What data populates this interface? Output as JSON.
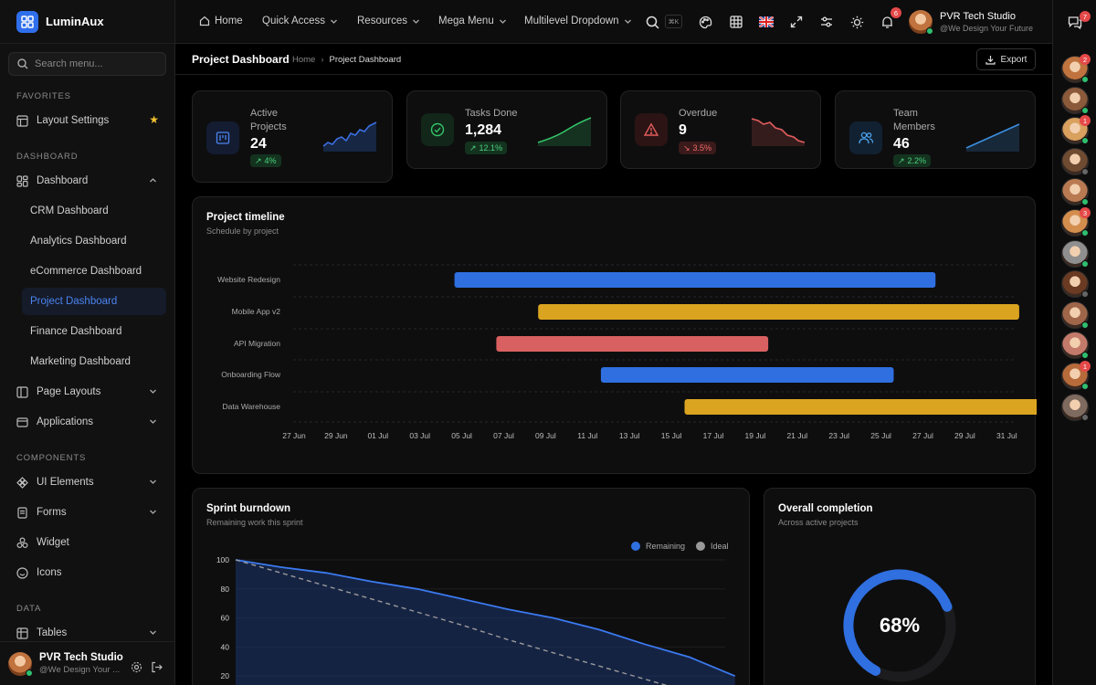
{
  "app": {
    "name": "LuminAux"
  },
  "sidebar": {
    "search_placeholder": "Search menu...",
    "sections": {
      "favorites": "FAVORITES",
      "dashboard": "DASHBOARD",
      "components": "COMPONENTS",
      "data": "DATA"
    },
    "layout_settings": "Layout Settings",
    "dashboard": "Dashboard",
    "sub": [
      "CRM Dashboard",
      "Analytics Dashboard",
      "eCommerce Dashboard",
      "Project Dashboard",
      "Finance Dashboard",
      "Marketing Dashboard"
    ],
    "page_layouts": "Page Layouts",
    "applications": "Applications",
    "ui_elements": "UI Elements",
    "forms": "Forms",
    "widget": "Widget",
    "icons": "Icons",
    "tables": "Tables",
    "footer": {
      "name": "PVR Tech Studio",
      "tagline": "@We Design Your ..."
    }
  },
  "topbar": {
    "home": "Home",
    "quick_access": "Quick Access",
    "resources": "Resources",
    "mega_menu": "Mega Menu",
    "multilevel": "Multilevel Dropdown",
    "kbd": "⌘K",
    "notifications_count": "6",
    "user_name": "PVR Tech Studio",
    "user_tagline": "@We Design Your Future",
    "chat_count": "7"
  },
  "page": {
    "title": "Project Dashboard",
    "crumb_home": "Home",
    "crumb_current": "Project Dashboard",
    "export": "Export"
  },
  "stats": [
    {
      "label": "Active Projects",
      "value": "24",
      "change": "4%",
      "dir": "up",
      "color": "#3b6fe0"
    },
    {
      "label": "Tasks Done",
      "value": "1,284",
      "change": "12.1%",
      "dir": "up",
      "color": "#34c468"
    },
    {
      "label": "Overdue",
      "value": "9",
      "change": "3.5%",
      "dir": "down",
      "color": "#e35d5d"
    },
    {
      "label": "Team Members",
      "value": "46",
      "change": "2.2%",
      "dir": "up",
      "color": "#3b8fe0"
    }
  ],
  "timeline": {
    "title": "Project timeline",
    "subtitle": "Schedule by project",
    "ticks": [
      "27 Jun",
      "29 Jun",
      "01 Jul",
      "03 Jul",
      "05 Jul",
      "07 Jul",
      "09 Jul",
      "11 Jul",
      "13 Jul",
      "15 Jul",
      "17 Jul",
      "19 Jul",
      "21 Jul",
      "23 Jul",
      "25 Jul",
      "27 Jul",
      "29 Jul",
      "31 Jul"
    ],
    "rows": [
      {
        "name": "Website Redesign",
        "start": "2024-07-01",
        "end": "2024-07-24",
        "color": "#2f6fe0"
      },
      {
        "name": "Mobile App v2",
        "start": "2024-07-05",
        "end": "2024-07-28",
        "color": "#dba420"
      },
      {
        "name": "API Migration",
        "start": "2024-07-03",
        "end": "2024-07-16",
        "color": "#d96060"
      },
      {
        "name": "Onboarding Flow",
        "start": "2024-07-08",
        "end": "2024-07-22",
        "color": "#2f6fe0"
      },
      {
        "name": "Data Warehouse",
        "start": "2024-07-12",
        "end": "2024-07-30",
        "color": "#dba420"
      }
    ]
  },
  "burndown": {
    "title": "Sprint burndown",
    "subtitle": "Remaining work this sprint",
    "legend": [
      "Remaining",
      "Ideal"
    ],
    "yticks": [
      "100",
      "80",
      "60",
      "40",
      "20"
    ]
  },
  "completion": {
    "title": "Overall completion",
    "subtitle": "Across active projects",
    "value": "68%",
    "fraction": 0.68
  },
  "chart_data": [
    {
      "type": "bar",
      "title": "Project timeline",
      "categories": [
        "Website Redesign",
        "Mobile App v2",
        "API Migration",
        "Onboarding Flow",
        "Data Warehouse"
      ],
      "start": [
        "2024-07-01",
        "2024-07-05",
        "2024-07-03",
        "2024-07-08",
        "2024-07-12"
      ],
      "end": [
        "2024-07-24",
        "2024-07-28",
        "2024-07-16",
        "2024-07-22",
        "2024-07-30"
      ],
      "xlim": [
        "2024-06-27",
        "2024-07-31"
      ]
    },
    {
      "type": "area",
      "title": "Sprint burndown",
      "ylim": [
        0,
        100
      ],
      "series": [
        {
          "name": "Remaining",
          "values": [
            100,
            95,
            91,
            85,
            80,
            73,
            66,
            60,
            52,
            42,
            33,
            20
          ]
        },
        {
          "name": "Ideal",
          "values": [
            100,
            91,
            82,
            73,
            64,
            55,
            45,
            36,
            27,
            18,
            9,
            0
          ]
        }
      ]
    }
  ]
}
